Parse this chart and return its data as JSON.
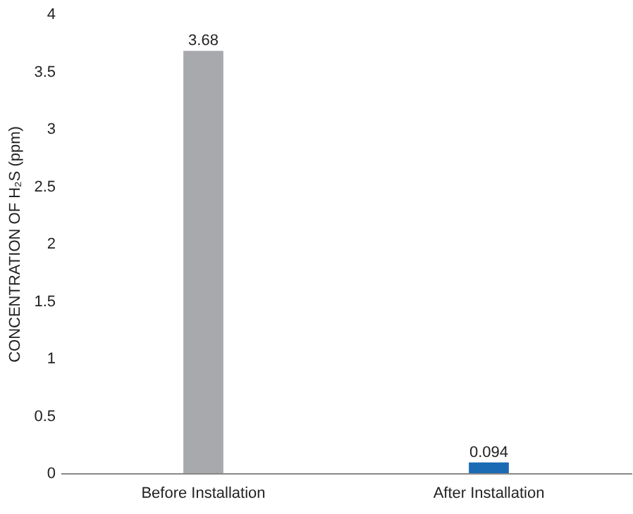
{
  "chart_data": {
    "type": "bar",
    "ylabel": "CONCENTRATION OF H₂S  (ppm)",
    "categories": [
      "Before Installation",
      "After Installation"
    ],
    "values": [
      3.68,
      0.094
    ],
    "colors": [
      "#a7a9ac",
      "#1a6bb3"
    ],
    "ylim": [
      0,
      4
    ],
    "yticks": [
      0,
      0.5,
      1,
      1.5,
      2,
      2.5,
      3,
      3.5,
      4
    ],
    "grid": false,
    "data_labels": true
  }
}
